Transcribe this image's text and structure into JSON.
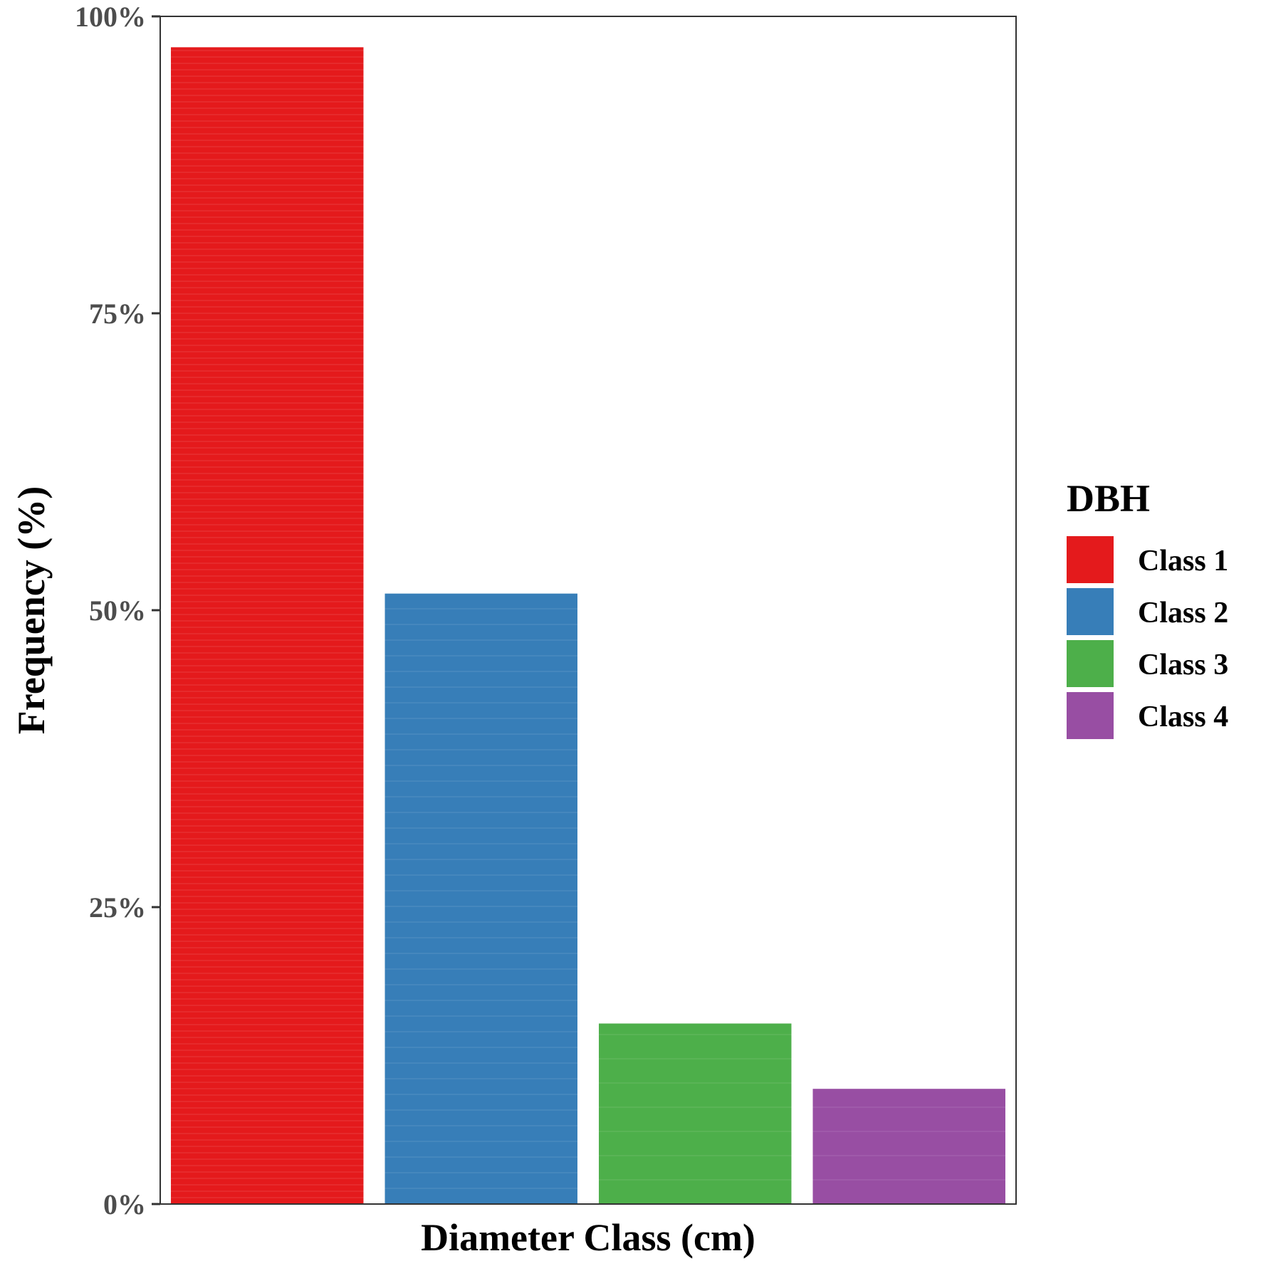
{
  "chart_data": {
    "type": "bar",
    "categories": [
      "Class 1",
      "Class 2",
      "Class 3",
      "Class 4"
    ],
    "values": [
      97.4,
      51.4,
      15.2,
      9.7
    ],
    "value_unit": "%",
    "xlabel": "Diameter Class (cm)",
    "ylabel": "Frequency (%)",
    "ylim": [
      0,
      100
    ],
    "yticks": [
      0,
      25,
      50,
      75,
      100
    ],
    "ytick_labels": [
      "0%",
      "25%",
      "50%",
      "75%",
      "100%"
    ],
    "x_tick_labels_shown": false,
    "grid": false,
    "legend": {
      "title": "DBH",
      "placement": "right",
      "entries": [
        "Class 1",
        "Class 2",
        "Class 3",
        "Class 4"
      ]
    },
    "colors": [
      "#e41a1c",
      "#377eb8",
      "#4daf4a",
      "#984ea3"
    ],
    "bars_have_thin_horizontal_stripes": true
  }
}
